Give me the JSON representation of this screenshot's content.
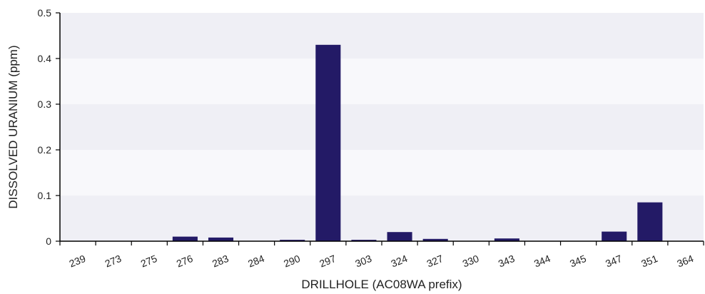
{
  "chart_data": {
    "type": "bar",
    "title": "",
    "xlabel": "DRILLHOLE (AC08WA prefix)",
    "ylabel": "DISSOLVED URANIUM (ppm)",
    "ylim": [
      0,
      0.5
    ],
    "yticks": [
      "0",
      "0.1",
      "0.2",
      "0.3",
      "0.4",
      "0.5"
    ],
    "categories": [
      "239",
      "273",
      "275",
      "276",
      "283",
      "284",
      "290",
      "297",
      "303",
      "324",
      "327",
      "330",
      "343",
      "344",
      "345",
      "347",
      "351",
      "364"
    ],
    "values": [
      0,
      0,
      0,
      0.01,
      0.008,
      0,
      0.003,
      0.43,
      0.003,
      0.02,
      0.005,
      0,
      0.006,
      0,
      0,
      0.021,
      0.085,
      0
    ],
    "bar_color": "#231a66",
    "band_colors": [
      "#efeff5",
      "#f8f8fb"
    ],
    "grid": false,
    "legend": "none"
  }
}
